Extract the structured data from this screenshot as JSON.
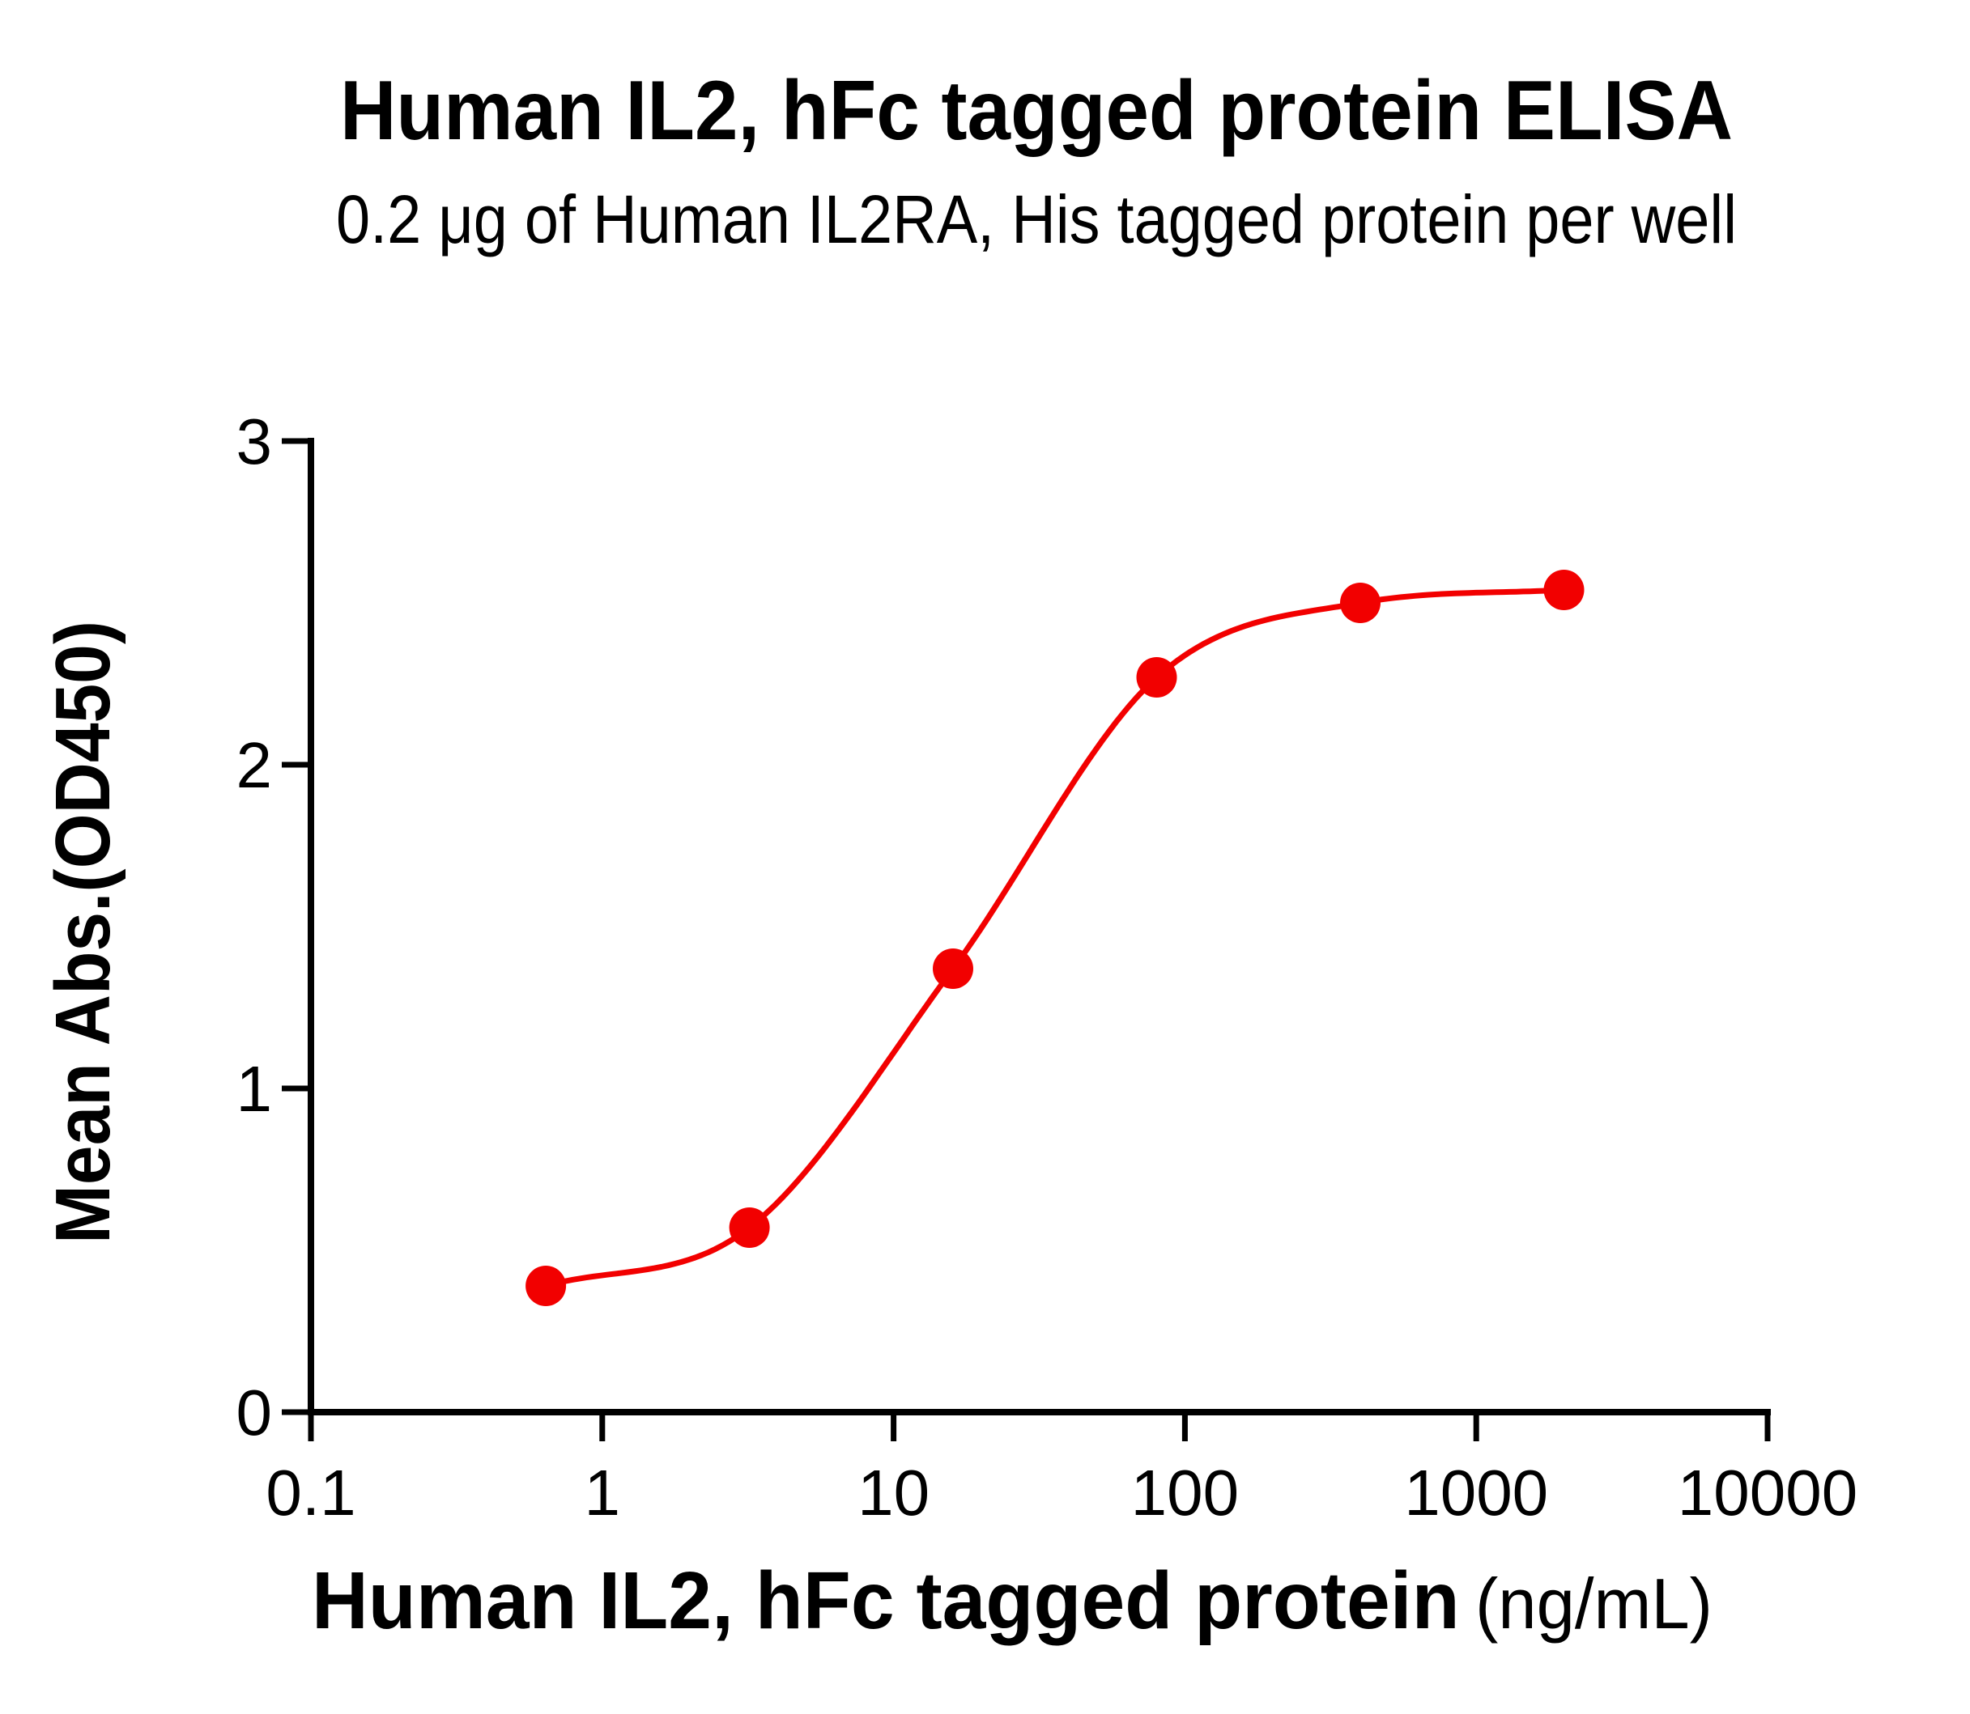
{
  "chart_data": {
    "type": "scatter",
    "title": "Human IL2, hFc tagged protein ELISA",
    "subtitle": "0.2 μg of Human IL2RA, His tagged protein per well",
    "xlabel": "Human IL2, hFc tagged protein",
    "xlabel_unit": "(ng/mL)",
    "ylabel": "Mean Abs.(OD450)",
    "x_scale": "log10",
    "xlim": [
      0.1,
      10000
    ],
    "ylim": [
      0,
      3
    ],
    "x_tick_labels": [
      "0.1",
      "1",
      "10",
      "100",
      "1000",
      "10000"
    ],
    "y_tick_labels": [
      "0",
      "1",
      "2",
      "3"
    ],
    "grid": false,
    "legend": "none",
    "series": [
      {
        "name": "Human IL2, hFc tagged protein",
        "color": "#F20000",
        "marker": "filled-circle",
        "curve": "4PL sigmoid fit",
        "points": [
          {
            "x": 0.64,
            "y": 0.39
          },
          {
            "x": 3.2,
            "y": 0.57
          },
          {
            "x": 16,
            "y": 1.37
          },
          {
            "x": 80,
            "y": 2.27
          },
          {
            "x": 400,
            "y": 2.5
          },
          {
            "x": 2000,
            "y": 2.54
          }
        ]
      }
    ],
    "colors": {
      "axis": "#000000",
      "text": "#000000",
      "background": "#FFFFFF",
      "series_red": "#F20000"
    }
  }
}
